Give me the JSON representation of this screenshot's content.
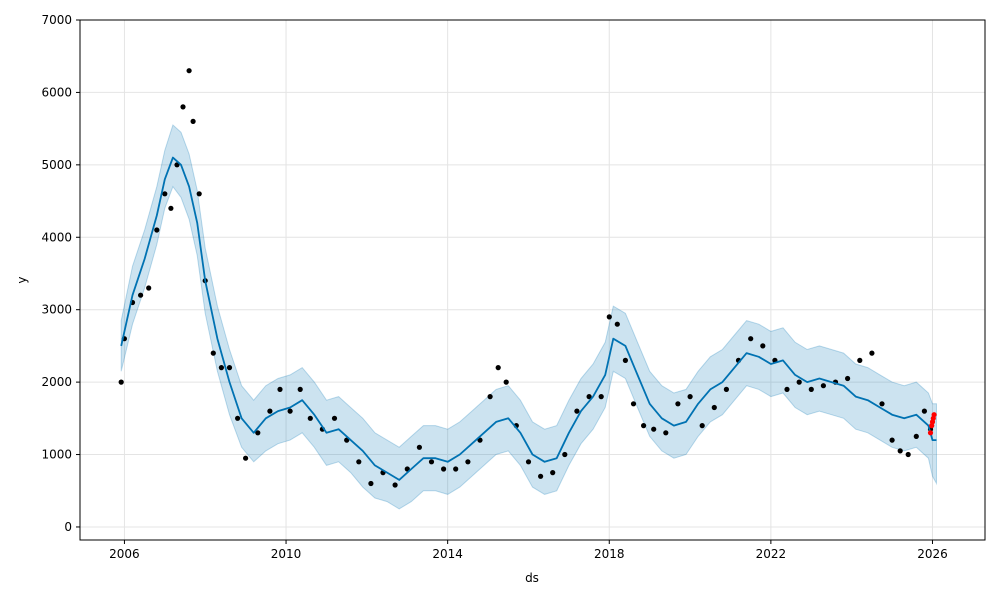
{
  "chart_data": {
    "type": "scatter",
    "title": "",
    "xlabel": "ds",
    "ylabel": "y",
    "xlim": [
      2004.9,
      2027.3
    ],
    "ylim": [
      -180,
      7000
    ],
    "x_ticks": [
      2006,
      2010,
      2014,
      2018,
      2022,
      2026
    ],
    "x_tick_labels": [
      "2006",
      "2010",
      "2014",
      "2018",
      "2022",
      "2026"
    ],
    "y_ticks": [
      0,
      1000,
      2000,
      3000,
      4000,
      5000,
      6000,
      7000
    ],
    "y_tick_labels": [
      "0",
      "1000",
      "2000",
      "3000",
      "4000",
      "5000",
      "6000",
      "7000"
    ],
    "grid": true,
    "colors": {
      "observed": "#000000",
      "forecast": "#0072B2",
      "band": "#0072B2",
      "recent": "#ff0000"
    },
    "series": [
      {
        "role": "observed",
        "x": [
          2005.92,
          2006.0,
          2006.2,
          2006.4,
          2006.6,
          2006.8,
          2007.0,
          2007.15,
          2007.3,
          2007.45,
          2007.6,
          2007.7,
          2007.85,
          2008.0,
          2008.2,
          2008.4,
          2008.6,
          2008.8,
          2009.0,
          2009.3,
          2009.6,
          2009.85,
          2010.1,
          2010.35,
          2010.6,
          2010.9,
          2011.2,
          2011.5,
          2011.8,
          2012.1,
          2012.4,
          2012.7,
          2013.0,
          2013.3,
          2013.6,
          2013.9,
          2014.2,
          2014.5,
          2014.8,
          2015.05,
          2015.25,
          2015.45,
          2015.7,
          2016.0,
          2016.3,
          2016.6,
          2016.9,
          2017.2,
          2017.5,
          2017.8,
          2018.0,
          2018.2,
          2018.4,
          2018.6,
          2018.85,
          2019.1,
          2019.4,
          2019.7,
          2020.0,
          2020.3,
          2020.6,
          2020.9,
          2021.2,
          2021.5,
          2021.8,
          2022.1,
          2022.4,
          2022.7,
          2023.0,
          2023.3,
          2023.6,
          2023.9,
          2024.2,
          2024.5,
          2024.75,
          2025.0,
          2025.2,
          2025.4,
          2025.6,
          2025.8,
          2025.95
        ],
        "y": [
          2000,
          2600,
          3100,
          3200,
          3300,
          4100,
          4600,
          4400,
          5000,
          5800,
          6300,
          5600,
          4600,
          3400,
          2400,
          2200,
          2200,
          1500,
          950,
          1300,
          1600,
          1900,
          1600,
          1900,
          1500,
          1350,
          1500,
          1200,
          900,
          600,
          750,
          580,
          800,
          1100,
          900,
          800,
          800,
          900,
          1200,
          1800,
          2200,
          2000,
          1400,
          900,
          700,
          750,
          1000,
          1600,
          1800,
          1800,
          2900,
          2800,
          2300,
          1700,
          1400,
          1350,
          1300,
          1700,
          1800,
          1400,
          1650,
          1900,
          2300,
          2600,
          2500,
          2300,
          1900,
          2000,
          1900,
          1950,
          2000,
          2050,
          2300,
          2400,
          1700,
          1200,
          1050,
          1000,
          1250,
          1600,
          1350
        ]
      },
      {
        "role": "recent",
        "x": [
          2025.95,
          2025.98,
          2026.0,
          2026.02,
          2026.04
        ],
        "y": [
          1300,
          1400,
          1450,
          1500,
          1550
        ]
      },
      {
        "role": "forecast",
        "x": [
          2005.92,
          2006.2,
          2006.5,
          2006.8,
          2007.0,
          2007.2,
          2007.4,
          2007.6,
          2007.8,
          2008.0,
          2008.3,
          2008.6,
          2008.9,
          2009.2,
          2009.5,
          2009.8,
          2010.1,
          2010.4,
          2010.7,
          2011.0,
          2011.3,
          2011.6,
          2011.9,
          2012.2,
          2012.5,
          2012.8,
          2013.1,
          2013.4,
          2013.7,
          2014.0,
          2014.3,
          2014.6,
          2014.9,
          2015.2,
          2015.5,
          2015.8,
          2016.1,
          2016.4,
          2016.7,
          2017.0,
          2017.3,
          2017.6,
          2017.9,
          2018.1,
          2018.4,
          2018.7,
          2019.0,
          2019.3,
          2019.6,
          2019.9,
          2020.2,
          2020.5,
          2020.8,
          2021.1,
          2021.4,
          2021.7,
          2022.0,
          2022.3,
          2022.6,
          2022.9,
          2023.2,
          2023.5,
          2023.8,
          2024.1,
          2024.4,
          2024.7,
          2025.0,
          2025.3,
          2025.6,
          2025.9,
          2026.0,
          2026.1
        ],
        "y": [
          2500,
          3200,
          3700,
          4300,
          4800,
          5100,
          5000,
          4700,
          4200,
          3400,
          2600,
          2000,
          1500,
          1300,
          1500,
          1600,
          1650,
          1750,
          1550,
          1300,
          1350,
          1200,
          1050,
          850,
          750,
          650,
          800,
          950,
          950,
          900,
          1000,
          1150,
          1300,
          1450,
          1500,
          1300,
          1000,
          900,
          950,
          1300,
          1600,
          1800,
          2100,
          2600,
          2500,
          2100,
          1700,
          1500,
          1400,
          1450,
          1700,
          1900,
          2000,
          2200,
          2400,
          2350,
          2250,
          2300,
          2100,
          2000,
          2050,
          2000,
          1950,
          1800,
          1750,
          1650,
          1550,
          1500,
          1550,
          1400,
          1200,
          1200
        ],
        "lower": [
          2150,
          2800,
          3300,
          3900,
          4400,
          4700,
          4550,
          4250,
          3750,
          2950,
          2150,
          1550,
          1100,
          900,
          1050,
          1150,
          1200,
          1300,
          1100,
          850,
          900,
          750,
          550,
          400,
          350,
          250,
          350,
          500,
          500,
          450,
          550,
          700,
          850,
          1000,
          1050,
          850,
          550,
          450,
          500,
          850,
          1150,
          1350,
          1650,
          2150,
          2050,
          1650,
          1250,
          1050,
          950,
          1000,
          1250,
          1450,
          1550,
          1750,
          1950,
          1900,
          1800,
          1850,
          1650,
          1550,
          1600,
          1550,
          1500,
          1350,
          1300,
          1200,
          1100,
          1050,
          1100,
          950,
          700,
          600
        ],
        "upper": [
          2850,
          3600,
          4100,
          4700,
          5200,
          5550,
          5450,
          5150,
          4650,
          3850,
          3050,
          2450,
          1950,
          1750,
          1950,
          2050,
          2100,
          2200,
          2000,
          1750,
          1800,
          1650,
          1500,
          1300,
          1200,
          1100,
          1250,
          1400,
          1400,
          1350,
          1450,
          1600,
          1750,
          1900,
          1950,
          1750,
          1450,
          1350,
          1400,
          1750,
          2050,
          2250,
          2550,
          3050,
          2950,
          2550,
          2150,
          1950,
          1850,
          1900,
          2150,
          2350,
          2450,
          2650,
          2850,
          2800,
          2700,
          2750,
          2550,
          2450,
          2500,
          2450,
          2400,
          2250,
          2200,
          2100,
          2000,
          1950,
          2000,
          1850,
          1700,
          1700
        ]
      }
    ]
  }
}
